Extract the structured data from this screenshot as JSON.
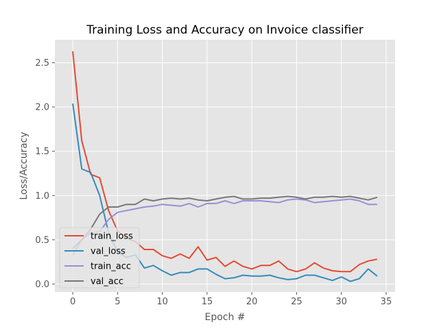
{
  "chart_data": {
    "type": "line",
    "title": "Training Loss and Accuracy on Invoice classifier",
    "xlabel": "Epoch #",
    "ylabel": "Loss/Accuracy",
    "xlim": [
      -2,
      36
    ],
    "ylim": [
      -0.09,
      2.76
    ],
    "xticks": [
      0,
      5,
      10,
      15,
      20,
      25,
      30,
      35
    ],
    "yticks": [
      0.0,
      0.5,
      1.0,
      1.5,
      2.0,
      2.5
    ],
    "grid": true,
    "style": "ggplot",
    "legend_position": "lower-left",
    "x": [
      0,
      1,
      2,
      3,
      4,
      5,
      6,
      7,
      8,
      9,
      10,
      11,
      12,
      13,
      14,
      15,
      16,
      17,
      18,
      19,
      20,
      21,
      22,
      23,
      24,
      25,
      26,
      27,
      28,
      29,
      30,
      31,
      32,
      33,
      34
    ],
    "series": [
      {
        "name": "train_loss",
        "color": "#E24A33",
        "values": [
          2.63,
          1.62,
          1.24,
          1.2,
          0.83,
          0.6,
          0.52,
          0.48,
          0.39,
          0.39,
          0.32,
          0.29,
          0.34,
          0.29,
          0.42,
          0.27,
          0.3,
          0.2,
          0.26,
          0.2,
          0.17,
          0.21,
          0.21,
          0.26,
          0.17,
          0.14,
          0.17,
          0.24,
          0.18,
          0.15,
          0.14,
          0.14,
          0.22,
          0.26,
          0.28
        ]
      },
      {
        "name": "val_loss",
        "color": "#348ABD",
        "values": [
          2.04,
          1.3,
          1.26,
          1.0,
          0.58,
          0.36,
          0.3,
          0.33,
          0.18,
          0.21,
          0.15,
          0.1,
          0.13,
          0.13,
          0.17,
          0.17,
          0.11,
          0.06,
          0.07,
          0.1,
          0.09,
          0.09,
          0.1,
          0.07,
          0.05,
          0.06,
          0.1,
          0.1,
          0.07,
          0.04,
          0.08,
          0.03,
          0.06,
          0.17,
          0.09
        ]
      },
      {
        "name": "train_acc",
        "color": "#988ED5",
        "values": [
          0.33,
          0.5,
          0.58,
          0.59,
          0.73,
          0.81,
          0.83,
          0.85,
          0.87,
          0.88,
          0.9,
          0.89,
          0.88,
          0.91,
          0.87,
          0.91,
          0.91,
          0.94,
          0.91,
          0.94,
          0.94,
          0.94,
          0.93,
          0.92,
          0.95,
          0.96,
          0.95,
          0.92,
          0.93,
          0.94,
          0.95,
          0.96,
          0.94,
          0.9,
          0.9
        ]
      },
      {
        "name": "val_acc",
        "color": "#777777",
        "values": [
          0.4,
          0.5,
          0.62,
          0.79,
          0.87,
          0.87,
          0.9,
          0.9,
          0.96,
          0.94,
          0.96,
          0.97,
          0.96,
          0.97,
          0.95,
          0.94,
          0.96,
          0.98,
          0.99,
          0.96,
          0.96,
          0.97,
          0.97,
          0.98,
          0.99,
          0.98,
          0.96,
          0.98,
          0.98,
          0.99,
          0.98,
          0.99,
          0.97,
          0.95,
          0.98
        ]
      }
    ]
  }
}
